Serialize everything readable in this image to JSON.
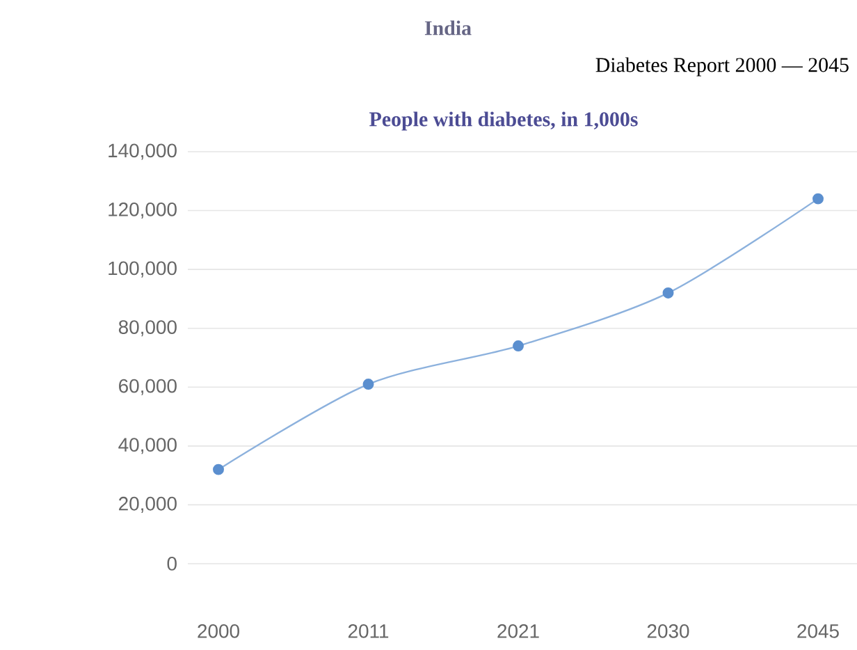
{
  "chart_data": {
    "type": "line",
    "title": "India",
    "subtitle": "Diabetes Report 2000 — 2045",
    "annotations": [
      "People with diabetes, in 1,000s"
    ],
    "categories": [
      "2000",
      "2011",
      "2021",
      "2030",
      "2045"
    ],
    "series": [
      {
        "color": "#5b8fcf",
        "values": [
          32000,
          61000,
          74000,
          92000,
          124000
        ]
      }
    ],
    "ylim": [
      0,
      140000
    ],
    "yticks": [
      {
        "value": 0,
        "label": "0"
      },
      {
        "value": 20000,
        "label": "20,000"
      },
      {
        "value": 40000,
        "label": "40,000"
      },
      {
        "value": 60000,
        "label": "60,000"
      },
      {
        "value": 80000,
        "label": "80,000"
      },
      {
        "value": 100000,
        "label": "100,000"
      },
      {
        "value": 120000,
        "label": "120,000"
      },
      {
        "value": 140000,
        "label": "140,000"
      }
    ],
    "grid": "y",
    "marker": "circle",
    "line_style": "solid"
  }
}
